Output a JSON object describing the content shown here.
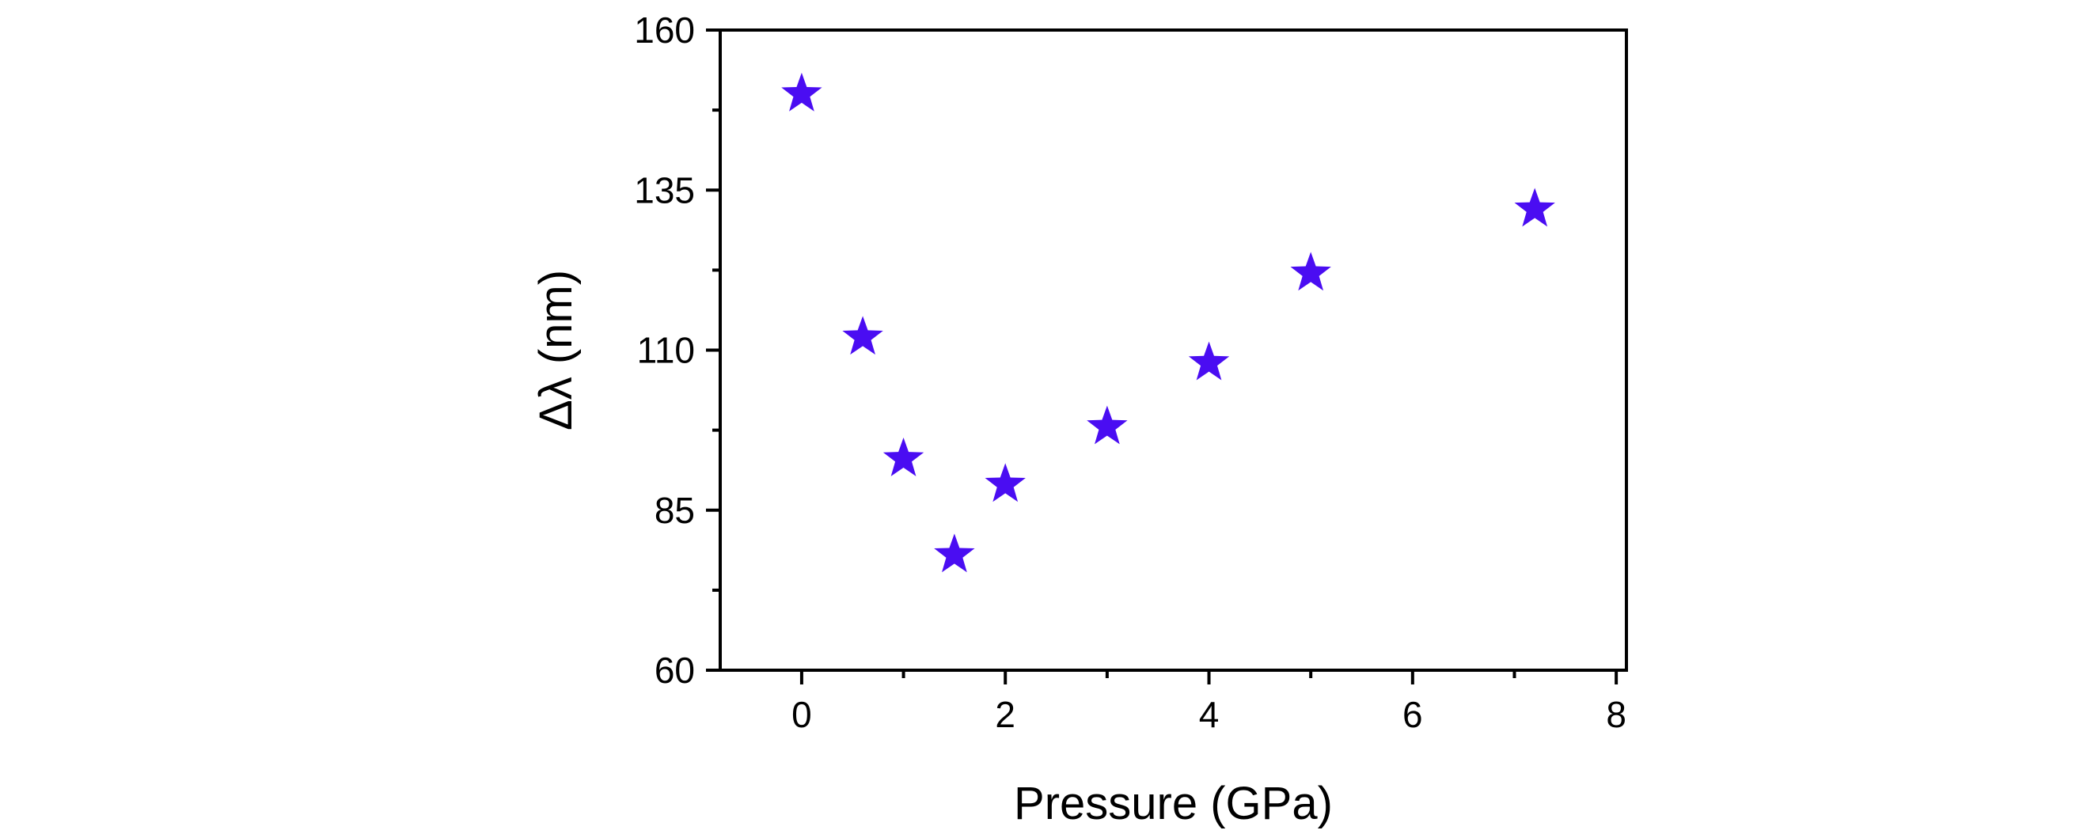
{
  "chart_data": {
    "type": "scatter",
    "title": "",
    "xlabel": "Pressure (GPa)",
    "ylabel": "Δλ (nm)",
    "xlim": [
      -0.8,
      8.1
    ],
    "ylim": [
      60,
      160
    ],
    "xticks": [
      0,
      2,
      4,
      6,
      8
    ],
    "xminor": [
      1,
      3,
      5,
      7
    ],
    "yticks": [
      60,
      85,
      110,
      135,
      160
    ],
    "yminor": [
      72.5,
      97.5,
      122.5,
      147.5
    ],
    "grid": false,
    "legend": "none",
    "marker": "star",
    "marker_color": "#4a0df2",
    "series": [
      {
        "x": [
          0,
          0.6,
          1.0,
          1.5,
          2.0,
          3.0,
          4.0,
          5.0,
          7.2
        ],
        "y": [
          150,
          112,
          93,
          78,
          89,
          98,
          108,
          122,
          132
        ]
      }
    ]
  }
}
